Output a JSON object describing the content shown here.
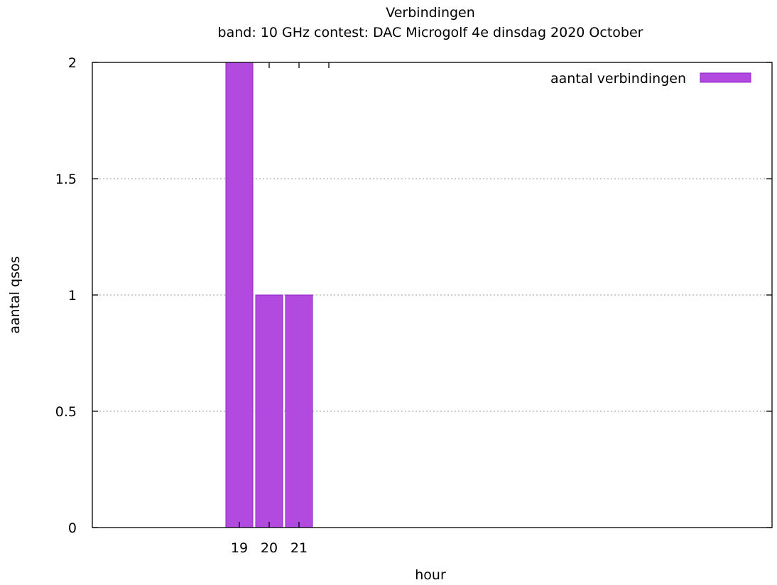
{
  "chart_data": {
    "type": "bar",
    "title": "Verbindingen",
    "subtitle": "band: 10 GHz  contest: DAC Microgolf 4e dinsdag 2020 October",
    "xlabel": "hour",
    "ylabel": "aantal qsos",
    "categories": [
      "19",
      "20",
      "21"
    ],
    "series": [
      {
        "name": "aantal verbindingen",
        "values": [
          2,
          1,
          1
        ]
      }
    ],
    "ylim": [
      0,
      2
    ],
    "yticks": [
      0,
      0.5,
      1,
      1.5,
      2
    ],
    "ytick_labels": [
      "0",
      "0.5",
      "1",
      "1.5",
      "2"
    ],
    "grid": "horizontal dotted",
    "legend_position": "top-right",
    "bar_color": "#b24ae0",
    "bar_edge_color": "#8d22c6"
  }
}
